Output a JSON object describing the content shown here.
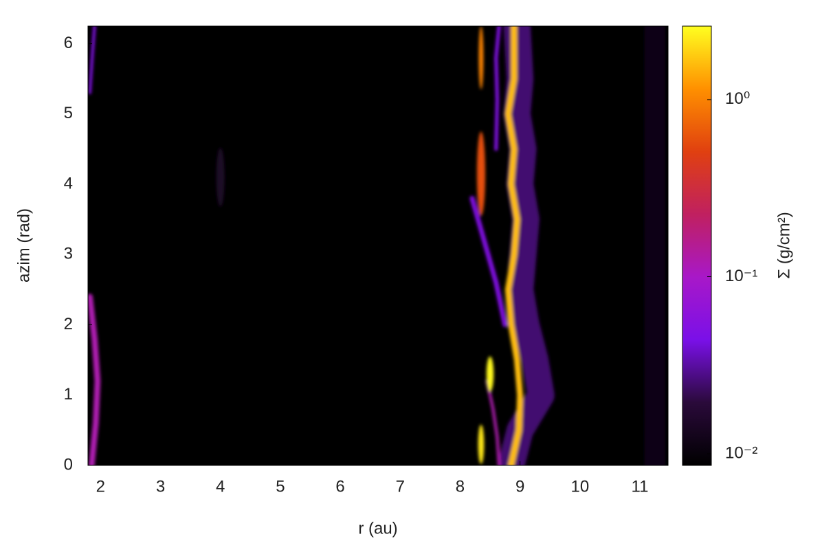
{
  "chart_data": {
    "type": "heatmap",
    "x_label": "r (au)",
    "y_label": "azim (rad)",
    "colorbar_label": "Σ (g/cm²)",
    "xlim": [
      1.79,
      11.47
    ],
    "ylim": [
      0,
      6.25
    ],
    "xticks": [
      2,
      3,
      4,
      5,
      6,
      7,
      8,
      9,
      10,
      11
    ],
    "yticks": [
      0,
      1,
      2,
      3,
      4,
      5,
      6
    ],
    "clim": [
      0.0086,
      2.6
    ],
    "clog": true,
    "cticks": [
      {
        "value": 1,
        "label": "10⁰"
      },
      {
        "value": 0.1,
        "label": "10⁻¹"
      },
      {
        "value": 0.01,
        "label": "10⁻²"
      }
    ],
    "colormap": [
      "#000000",
      "#2a0a3a",
      "#7a10e8",
      "#a818c8",
      "#c02060",
      "#e04010",
      "#ff9000",
      "#ffff20"
    ],
    "ridges": [
      {
        "x": [
          8.85,
          9.0,
          9.35,
          9.25,
          9.1,
          9.0,
          9.05,
          9.1,
          9.0,
          9.05,
          8.95,
          9.0,
          8.95
        ],
        "y": [
          0,
          0.5,
          1.0,
          1.5,
          2.0,
          2.5,
          3.0,
          3.5,
          4.0,
          4.5,
          5.0,
          5.5,
          6.25
        ],
        "value": 0.025,
        "width": 0.45
      },
      {
        "x": [
          8.85,
          8.98,
          9.0,
          8.95,
          8.85,
          8.8,
          8.9,
          8.95,
          8.85,
          8.9,
          8.8,
          8.9,
          8.9
        ],
        "y": [
          0,
          0.5,
          1.0,
          1.5,
          2.0,
          2.5,
          3.0,
          3.5,
          4.0,
          4.5,
          5.0,
          5.5,
          6.25
        ],
        "value": 1.6,
        "width": 0.1
      },
      {
        "x": [
          8.2,
          8.4,
          8.6,
          8.75
        ],
        "y": [
          3.8,
          3.2,
          2.6,
          2.0
        ],
        "value": 0.05,
        "width": 0.08
      },
      {
        "x": [
          8.6,
          8.62,
          8.6,
          8.65
        ],
        "y": [
          4.5,
          5.2,
          5.8,
          6.25
        ],
        "value": 0.05,
        "width": 0.06
      },
      {
        "x": [
          8.45,
          8.55,
          8.62,
          8.65
        ],
        "y": [
          1.2,
          0.8,
          0.4,
          0
        ],
        "value": 0.12,
        "width": 0.05
      },
      {
        "x": [
          1.85,
          1.92,
          1.95,
          1.9,
          1.82
        ],
        "y": [
          0,
          0.6,
          1.2,
          1.8,
          2.4
        ],
        "value": 0.12,
        "width": 0.1
      },
      {
        "x": [
          1.82,
          1.86,
          1.9
        ],
        "y": [
          5.3,
          5.8,
          6.25
        ],
        "value": 0.05,
        "width": 0.05
      },
      {
        "x": [
          11.25,
          11.25
        ],
        "y": [
          0,
          6.25
        ],
        "value": 0.012,
        "width": 0.35
      }
    ],
    "blobs": [
      {
        "x": 8.35,
        "y": 0.3,
        "rx": 0.05,
        "ry": 0.28,
        "value": 2.2
      },
      {
        "x": 8.5,
        "y": 1.3,
        "rx": 0.06,
        "ry": 0.25,
        "value": 2.5
      },
      {
        "x": 8.35,
        "y": 4.15,
        "rx": 0.07,
        "ry": 0.6,
        "value": 0.6
      },
      {
        "x": 8.35,
        "y": 5.8,
        "rx": 0.04,
        "ry": 0.45,
        "value": 1.0
      },
      {
        "x": 4.0,
        "y": 4.1,
        "rx": 0.07,
        "ry": 0.42,
        "value": 0.015
      }
    ]
  }
}
